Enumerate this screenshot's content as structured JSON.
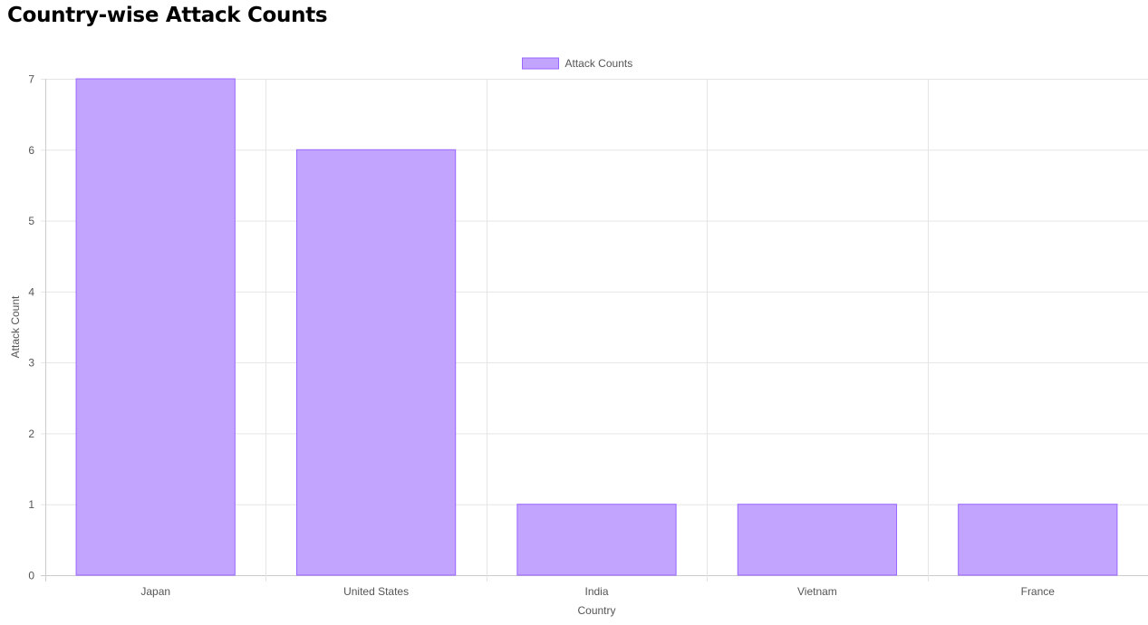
{
  "page": {
    "title": "Country-wise Attack Counts"
  },
  "chart_data": {
    "type": "bar",
    "categories": [
      "Japan",
      "United States",
      "India",
      "Vietnam",
      "France"
    ],
    "series": [
      {
        "name": "Attack Counts",
        "values": [
          7,
          6,
          1,
          1,
          1
        ]
      }
    ],
    "xlabel": "Country",
    "ylabel": "Attack Count",
    "ylim": [
      0,
      7
    ],
    "yticks": [
      0,
      1,
      2,
      3,
      4,
      5,
      6,
      7
    ],
    "grid": true,
    "legend_position": "top-center",
    "colors": {
      "bar_fill": "#c2a3fd",
      "bar_border": "#9966ff",
      "grid": "#e5e5e5",
      "axis": "#cccccc",
      "tick_text": "#555555"
    }
  }
}
